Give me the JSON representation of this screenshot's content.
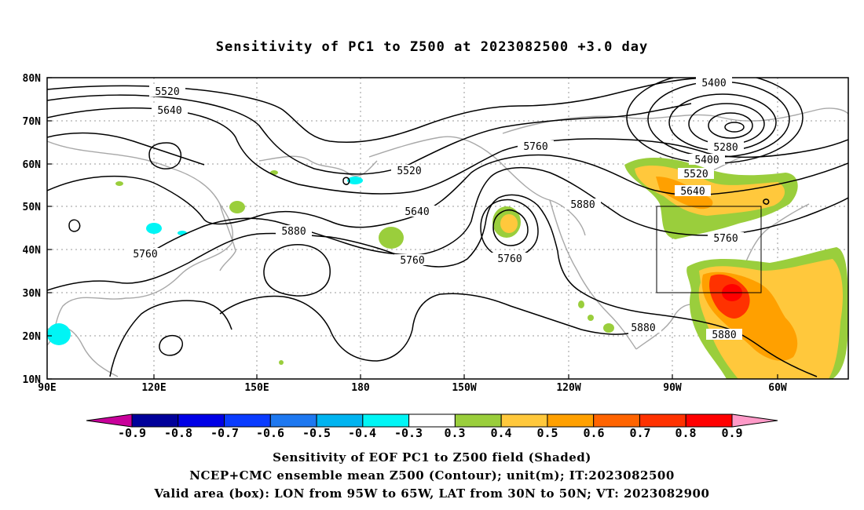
{
  "title": "Sensitivity of PC1 to Z500 at 2023082500 +3.0 day",
  "map": {
    "lat_labels": [
      "80N",
      "70N",
      "60N",
      "50N",
      "40N",
      "30N",
      "20N",
      "10N"
    ],
    "lon_labels": [
      "90E",
      "120E",
      "150E",
      "180",
      "150W",
      "120W",
      "90W",
      "60W"
    ],
    "contour_labels": [
      "5400",
      "5520",
      "5640",
      "5280",
      "5400",
      "5520",
      "5640",
      "5760",
      "5760",
      "5520",
      "5640",
      "5880",
      "5880",
      "5760",
      "5760",
      "5760",
      "5760",
      "5880",
      "5880"
    ],
    "valid_box": {
      "lon_min": -95,
      "lon_max": -65,
      "lat_min": 30,
      "lat_max": 50
    }
  },
  "colorbar": {
    "labels": [
      "-0.9",
      "-0.8",
      "-0.7",
      "-0.6",
      "-0.5",
      "-0.4",
      "-0.3",
      "0.3",
      "0.4",
      "0.5",
      "0.6",
      "0.7",
      "0.8",
      "0.9"
    ],
    "colors": [
      "#00009a",
      "#0000e6",
      "#0a3cff",
      "#1e78f0",
      "#00b4f0",
      "#00f5f5",
      "#ffffff",
      "#9ace3c",
      "#ffc83c",
      "#ffa000",
      "#ff6400",
      "#ff3200",
      "#ff0000"
    ],
    "low_extend_color": "#c8009a",
    "high_extend_color": "#ff9ac8"
  },
  "captions": [
    "Sensitivity of EOF PC1 to Z500 field (Shaded)",
    "NCEP+CMC ensemble mean Z500 (Contour); unit(m); IT:2023082500",
    "Valid area (box): LON from 95W to 65W, LAT from 30N to 50N; VT: 2023082900"
  ]
}
